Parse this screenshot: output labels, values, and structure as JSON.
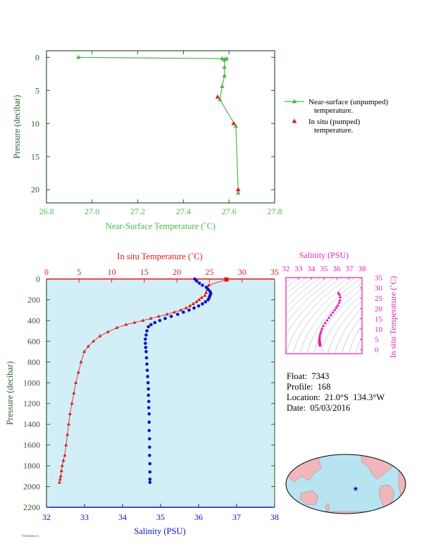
{
  "colors": {
    "near_surface_green": "#4cb84c",
    "in_situ_red": "#e01818",
    "salinity_blue": "#1010cc",
    "salinity_magenta": "#e020b0",
    "profile_bg": "#d2eef6",
    "axis_dark_green": "#2e5a2e",
    "land_pink": "#f0b6bc",
    "ocean_blue": "#b8e4f2"
  },
  "info": {
    "float": "Float:  7343",
    "profile": "Profile:  168",
    "location": "Location:  21.0°S  134.3°W",
    "date": "Date:  05/03/2016"
  },
  "footer_id": "7343/hidden-id",
  "chart_data": [
    {
      "type": "line",
      "name": "near_surface",
      "xlabel": "Near-Surface Temperature (˚C)",
      "ylabel": "Pressure (decibar)",
      "xlim": [
        26.8,
        27.8
      ],
      "ylim": [
        22,
        -1
      ],
      "xticks": [
        "26.8",
        "27.0",
        "27.2",
        "27.4",
        "27.6",
        "27.8"
      ],
      "yticks": [
        "0",
        "5",
        "10",
        "15",
        "20"
      ],
      "legend_position": "right",
      "series": [
        {
          "name": "Near-surface (unpumped)\ntemperature.",
          "marker": "triangle",
          "x": [
            26.94,
            27.57,
            27.58,
            27.59,
            27.58,
            27.58,
            27.58,
            27.57,
            27.56,
            27.63,
            27.64,
            27.64
          ],
          "y": [
            0.0,
            0.2,
            0.3,
            0.2,
            0.4,
            1.5,
            2.8,
            4.4,
            6.4,
            10.4,
            20.0,
            20.5
          ]
        },
        {
          "name": "In situ (pumped)\ntemperature.",
          "marker": "triangle",
          "x": [
            27.55,
            27.62,
            27.64
          ],
          "y": [
            6.0,
            10.0,
            20.0
          ]
        }
      ]
    },
    {
      "type": "scatter",
      "name": "profile",
      "ylabel": "Pressure (decibar)",
      "ylim": [
        2200,
        0
      ],
      "yticks": [
        "0",
        "200",
        "400",
        "600",
        "800",
        "1000",
        "1200",
        "1400",
        "1600",
        "1800",
        "2000",
        "2200"
      ],
      "top_axis": {
        "label": "In situ Temperature (˚C)",
        "lim": [
          0,
          35
        ],
        "ticks": [
          "0",
          "5",
          "10",
          "15",
          "20",
          "25",
          "30",
          "35"
        ]
      },
      "bottom_axis": {
        "label": "Salinity (PSU)",
        "lim": [
          32,
          38
        ],
        "ticks": [
          "32",
          "33",
          "34",
          "35",
          "36",
          "37",
          "38"
        ]
      },
      "series": [
        {
          "name": "temperature",
          "marker": "triangle",
          "x": [
            27.6,
            24.9,
            24.7,
            24.5,
            24.3,
            23.8,
            23.4,
            23.0,
            22.5,
            22.0,
            21.4,
            20.6,
            19.6,
            18.5,
            17.2,
            16.0,
            14.8,
            13.5,
            12.2,
            10.8,
            9.4,
            8.2,
            7.2,
            6.4,
            5.8,
            5.3,
            4.9,
            4.5,
            4.2,
            3.9,
            3.6,
            3.4,
            3.2,
            3.0,
            2.8,
            2.6,
            2.4,
            2.3,
            2.2,
            2.1,
            2.0
          ],
          "y": [
            5,
            60,
            100,
            130,
            160,
            180,
            200,
            220,
            240,
            260,
            280,
            300,
            320,
            340,
            360,
            380,
            400,
            420,
            440,
            470,
            510,
            550,
            600,
            650,
            700,
            800,
            900,
            1000,
            1100,
            1200,
            1300,
            1400,
            1500,
            1600,
            1700,
            1750,
            1800,
            1850,
            1900,
            1930,
            1960
          ]
        },
        {
          "name": "salinity",
          "marker": "circle",
          "x": [
            35.9,
            35.95,
            36.02,
            36.1,
            36.2,
            36.25,
            36.3,
            36.32,
            36.3,
            36.28,
            36.25,
            36.18,
            36.1,
            36.0,
            35.88,
            35.75,
            35.6,
            35.45,
            35.28,
            35.12,
            34.98,
            34.85,
            34.75,
            34.68,
            34.64,
            34.62,
            34.6,
            34.6,
            34.61,
            34.62,
            34.63,
            34.64,
            34.65,
            34.66,
            34.67,
            34.68,
            34.68,
            34.69,
            34.69,
            34.7,
            34.7,
            34.7,
            34.71,
            34.71,
            34.71,
            34.72,
            34.72,
            34.72,
            34.72
          ],
          "y": [
            0,
            20,
            40,
            60,
            80,
            100,
            120,
            140,
            160,
            180,
            200,
            220,
            240,
            260,
            280,
            300,
            320,
            340,
            360,
            380,
            400,
            420,
            440,
            460,
            500,
            540,
            580,
            620,
            660,
            700,
            760,
            820,
            880,
            940,
            1000,
            1060,
            1120,
            1180,
            1240,
            1300,
            1380,
            1460,
            1540,
            1620,
            1700,
            1780,
            1860,
            1930,
            1960
          ]
        }
      ]
    },
    {
      "type": "scatter",
      "name": "ts_diagram",
      "xlabel": "Salinity (PSU)",
      "ylabel": "In situ Temperature (˚C)",
      "xlim": [
        32,
        38
      ],
      "ylim": [
        -2,
        35
      ],
      "xticks": [
        "32",
        "33",
        "34",
        "35",
        "36",
        "37",
        "38"
      ],
      "yticks": [
        "0",
        "5",
        "10",
        "15",
        "20",
        "25",
        "30",
        "35"
      ],
      "grid": "density contours",
      "series": [
        {
          "name": "profile",
          "marker": "triangle",
          "x": [
            36.15,
            36.22,
            36.28,
            36.26,
            36.2,
            36.1,
            35.98,
            35.85,
            35.7,
            35.55,
            35.4,
            35.25,
            35.1,
            34.95,
            34.85,
            34.78,
            34.72,
            34.68,
            34.66,
            34.65,
            34.64,
            34.64,
            34.65,
            34.66,
            34.67,
            34.68,
            34.68,
            34.69,
            34.7,
            34.71
          ],
          "y": [
            27.5,
            26.8,
            25.5,
            24.0,
            22.8,
            21.5,
            20.4,
            19.2,
            18.0,
            16.8,
            15.5,
            14.2,
            12.9,
            11.5,
            10.2,
            9.0,
            7.9,
            6.9,
            6.0,
            5.3,
            4.8,
            4.3,
            3.9,
            3.6,
            3.3,
            3.0,
            2.7,
            2.4,
            2.2,
            2.0
          ]
        }
      ]
    }
  ],
  "map": {
    "marker_lon": -134.3,
    "marker_lat": -21.0
  }
}
